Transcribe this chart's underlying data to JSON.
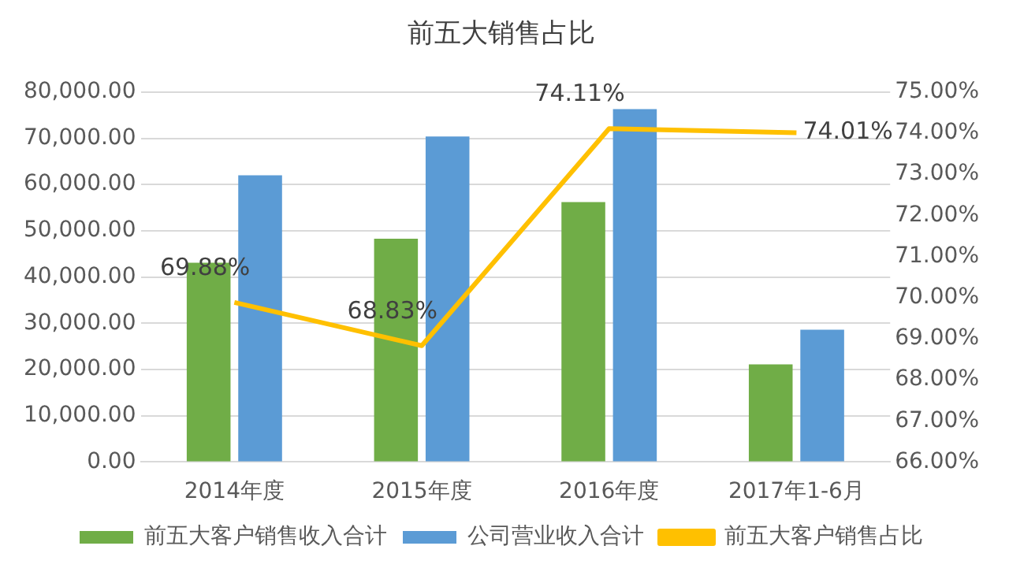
{
  "chart_data": {
    "type": "bar",
    "title": "前五大销售占比",
    "categories": [
      "2014年度",
      "2015年度",
      "2016年度",
      "2017年1-6月"
    ],
    "series": [
      {
        "name": "前五大客户销售收入合计",
        "color": "#70ad47",
        "values": [
          43100,
          48300,
          56200,
          21100
        ]
      },
      {
        "name": "公司营业收入合计",
        "color": "#5b9bd5",
        "values": [
          62000,
          70400,
          76300,
          28600
        ]
      },
      {
        "name": "前五大客户销售占比",
        "type": "line",
        "axis": "y2",
        "color": "#ffc000",
        "values": [
          69.88,
          68.83,
          74.11,
          74.01
        ],
        "value_labels": [
          "69.88%",
          "68.83%",
          "74.11%",
          "74.01%"
        ]
      }
    ],
    "ylim": [
      0,
      80000
    ],
    "yticks": [
      {
        "value": 0,
        "label": "0.00"
      },
      {
        "value": 10000,
        "label": "10,000.00"
      },
      {
        "value": 20000,
        "label": "20,000.00"
      },
      {
        "value": 30000,
        "label": "30,000.00"
      },
      {
        "value": 40000,
        "label": "40,000.00"
      },
      {
        "value": 50000,
        "label": "50,000.00"
      },
      {
        "value": 60000,
        "label": "60,000.00"
      },
      {
        "value": 70000,
        "label": "70,000.00"
      },
      {
        "value": 80000,
        "label": "80,000.00"
      }
    ],
    "y2lim": [
      66,
      75
    ],
    "y2ticks": [
      {
        "value": 66,
        "label": "66.00%"
      },
      {
        "value": 67,
        "label": "67.00%"
      },
      {
        "value": 68,
        "label": "68.00%"
      },
      {
        "value": 69,
        "label": "69.00%"
      },
      {
        "value": 70,
        "label": "70.00%"
      },
      {
        "value": 71,
        "label": "71.00%"
      },
      {
        "value": 72,
        "label": "72.00%"
      },
      {
        "value": 73,
        "label": "73.00%"
      },
      {
        "value": 74,
        "label": "74.00%"
      },
      {
        "value": 75,
        "label": "75.00%"
      }
    ],
    "grid": "y",
    "legend": "bottom",
    "marker": "none"
  }
}
